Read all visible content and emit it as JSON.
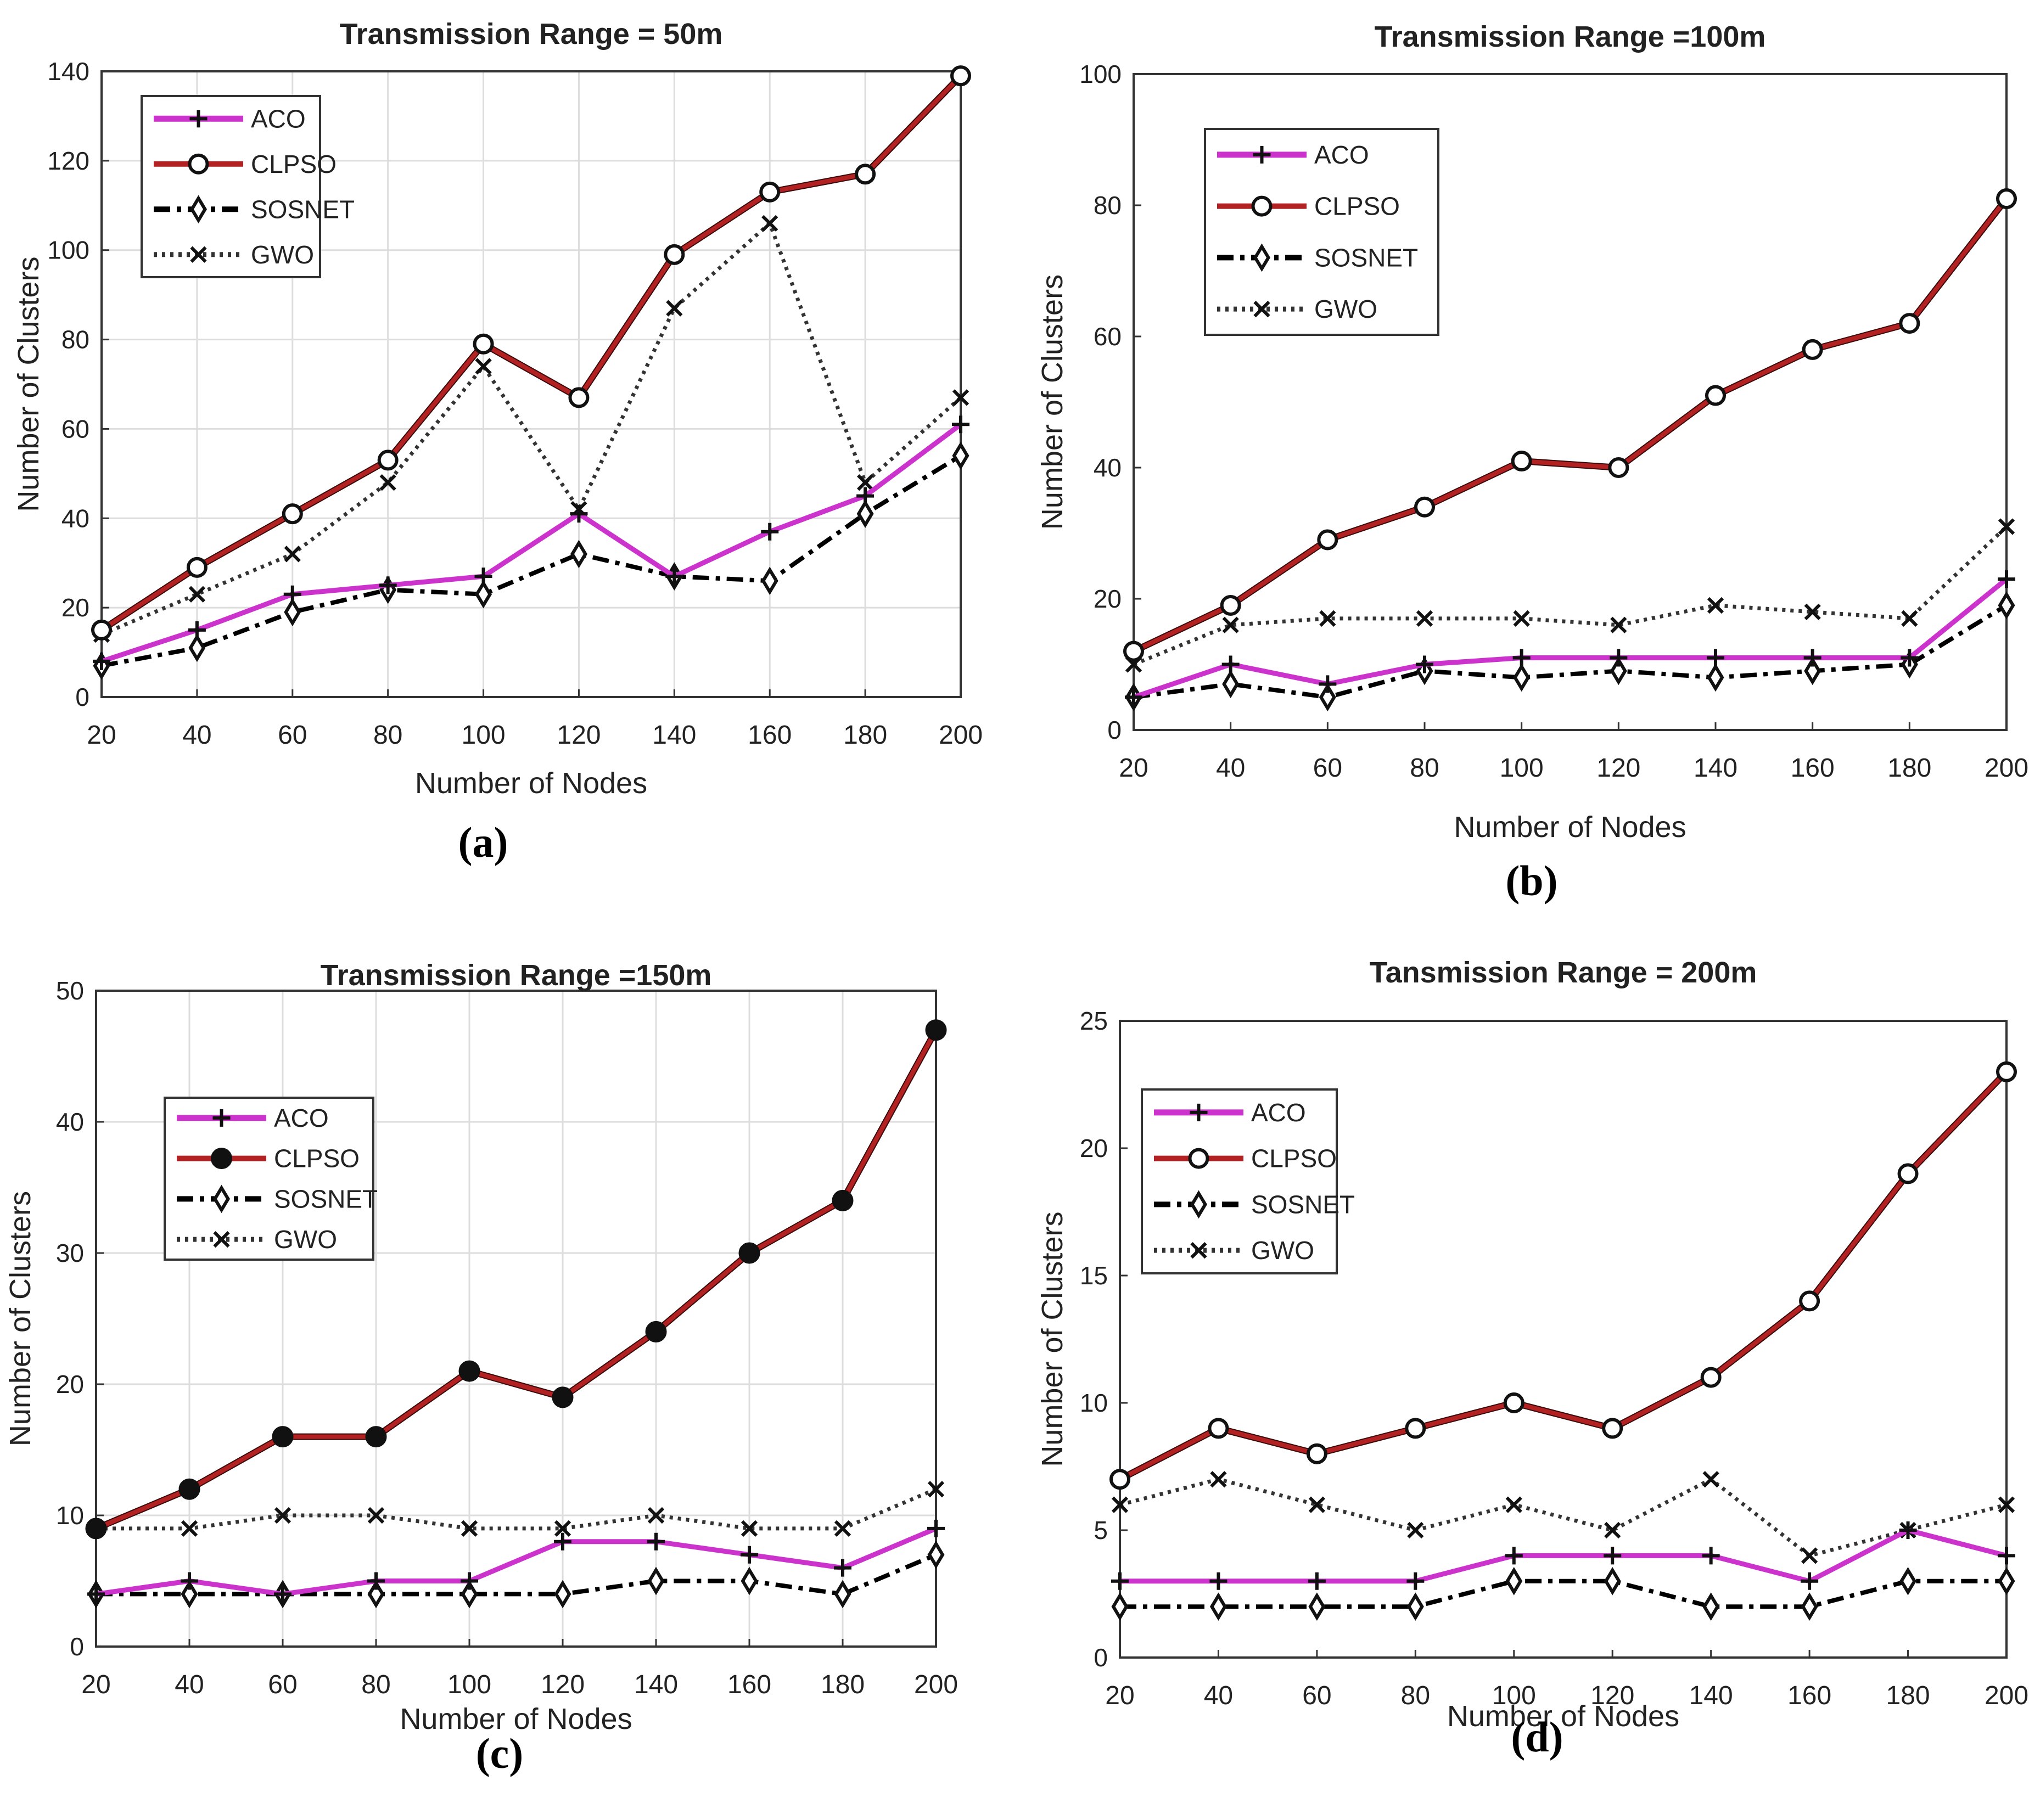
{
  "colors": {
    "ACO": "#cc33cc",
    "CLPSO": "#b22222",
    "SOSNET": "#000000",
    "GWO": "#333333"
  },
  "chart_data": [
    {
      "type": "line",
      "title": "Transmission Range = 50m",
      "xlabel": "Number of Nodes",
      "ylabel": "Number of Clusters",
      "x": [
        20,
        40,
        60,
        80,
        100,
        120,
        140,
        160,
        180,
        200
      ],
      "xticks": [
        "20",
        "40",
        "60",
        "80",
        "100",
        "120",
        "140",
        "160",
        "180",
        "200"
      ],
      "ylim": [
        0,
        140
      ],
      "yticks": [
        "0",
        "20",
        "40",
        "60",
        "80",
        "100",
        "120",
        "140"
      ],
      "grid": true,
      "legend": "top-left",
      "caption": "(a)",
      "series": [
        {
          "name": "ACO",
          "values": [
            8,
            15,
            23,
            25,
            27,
            41,
            27,
            37,
            45,
            61
          ]
        },
        {
          "name": "CLPSO",
          "values": [
            15,
            29,
            41,
            53,
            79,
            67,
            99,
            113,
            117,
            139
          ]
        },
        {
          "name": "SOSNET",
          "values": [
            7,
            11,
            19,
            24,
            23,
            32,
            27,
            26,
            41,
            54
          ]
        },
        {
          "name": "GWO",
          "values": [
            14,
            23,
            32,
            48,
            74,
            42,
            87,
            106,
            48,
            67
          ]
        }
      ]
    },
    {
      "type": "line",
      "title": "Transmission Range =100m",
      "xlabel": "Number of Nodes",
      "ylabel": "Number of Clusters",
      "x": [
        20,
        40,
        60,
        80,
        100,
        120,
        140,
        160,
        180,
        200
      ],
      "xticks": [
        "20",
        "40",
        "60",
        "80",
        "100",
        "120",
        "140",
        "160",
        "180",
        "200"
      ],
      "ylim": [
        0,
        100
      ],
      "yticks": [
        "0",
        "20",
        "40",
        "60",
        "80",
        "100"
      ],
      "grid": false,
      "legend": "top-left",
      "caption": "(b)",
      "series": [
        {
          "name": "ACO",
          "values": [
            5,
            10,
            7,
            10,
            11,
            11,
            11,
            11,
            11,
            23
          ]
        },
        {
          "name": "CLPSO",
          "values": [
            12,
            19,
            29,
            34,
            41,
            40,
            51,
            58,
            62,
            81
          ]
        },
        {
          "name": "SOSNET",
          "values": [
            5,
            7,
            5,
            9,
            8,
            9,
            8,
            9,
            10,
            19
          ]
        },
        {
          "name": "GWO",
          "values": [
            10,
            16,
            17,
            17,
            17,
            16,
            19,
            18,
            17,
            31
          ]
        }
      ]
    },
    {
      "type": "line",
      "title": "Transmission Range =150m",
      "xlabel": "Number of Nodes",
      "ylabel": "Number of Clusters",
      "x": [
        20,
        40,
        60,
        80,
        100,
        120,
        140,
        160,
        180,
        200
      ],
      "xticks": [
        "20",
        "40",
        "60",
        "80",
        "100",
        "120",
        "140",
        "160",
        "180",
        "200"
      ],
      "ylim": [
        0,
        50
      ],
      "yticks": [
        "0",
        "10",
        "20",
        "30",
        "40",
        "50"
      ],
      "grid": true,
      "legend": "top-left",
      "caption": "(c)",
      "series": [
        {
          "name": "ACO",
          "values": [
            4,
            5,
            4,
            5,
            5,
            8,
            8,
            7,
            6,
            9
          ]
        },
        {
          "name": "CLPSO",
          "values": [
            9,
            12,
            16,
            16,
            21,
            19,
            24,
            30,
            34,
            47
          ]
        },
        {
          "name": "SOSNET",
          "values": [
            4,
            4,
            4,
            4,
            4,
            4,
            5,
            5,
            4,
            7
          ]
        },
        {
          "name": "GWO",
          "values": [
            9,
            9,
            10,
            10,
            9,
            9,
            10,
            9,
            9,
            12
          ]
        }
      ]
    },
    {
      "type": "line",
      "title": "Tansmission Range  = 200m",
      "xlabel": "Number of Nodes",
      "ylabel": "Number of Clusters",
      "x": [
        20,
        40,
        60,
        80,
        100,
        120,
        140,
        160,
        180,
        200
      ],
      "xticks": [
        "20",
        "40",
        "60",
        "80",
        "100",
        "120",
        "140",
        "160",
        "180",
        "200"
      ],
      "ylim": [
        0,
        25
      ],
      "yticks": [
        "0",
        "5",
        "10",
        "15",
        "20",
        "25"
      ],
      "grid": false,
      "legend": "top-left",
      "caption": "(d)",
      "series": [
        {
          "name": "ACO",
          "values": [
            3,
            3,
            3,
            3,
            4,
            4,
            4,
            3,
            5,
            4
          ]
        },
        {
          "name": "CLPSO",
          "values": [
            7,
            9,
            8,
            9,
            10,
            9,
            11,
            14,
            19,
            23
          ]
        },
        {
          "name": "SOSNET",
          "values": [
            2,
            2,
            2,
            2,
            3,
            3,
            2,
            2,
            3,
            3
          ]
        },
        {
          "name": "GWO",
          "values": [
            6,
            7,
            6,
            5,
            6,
            5,
            7,
            4,
            5,
            6
          ]
        }
      ]
    }
  ]
}
